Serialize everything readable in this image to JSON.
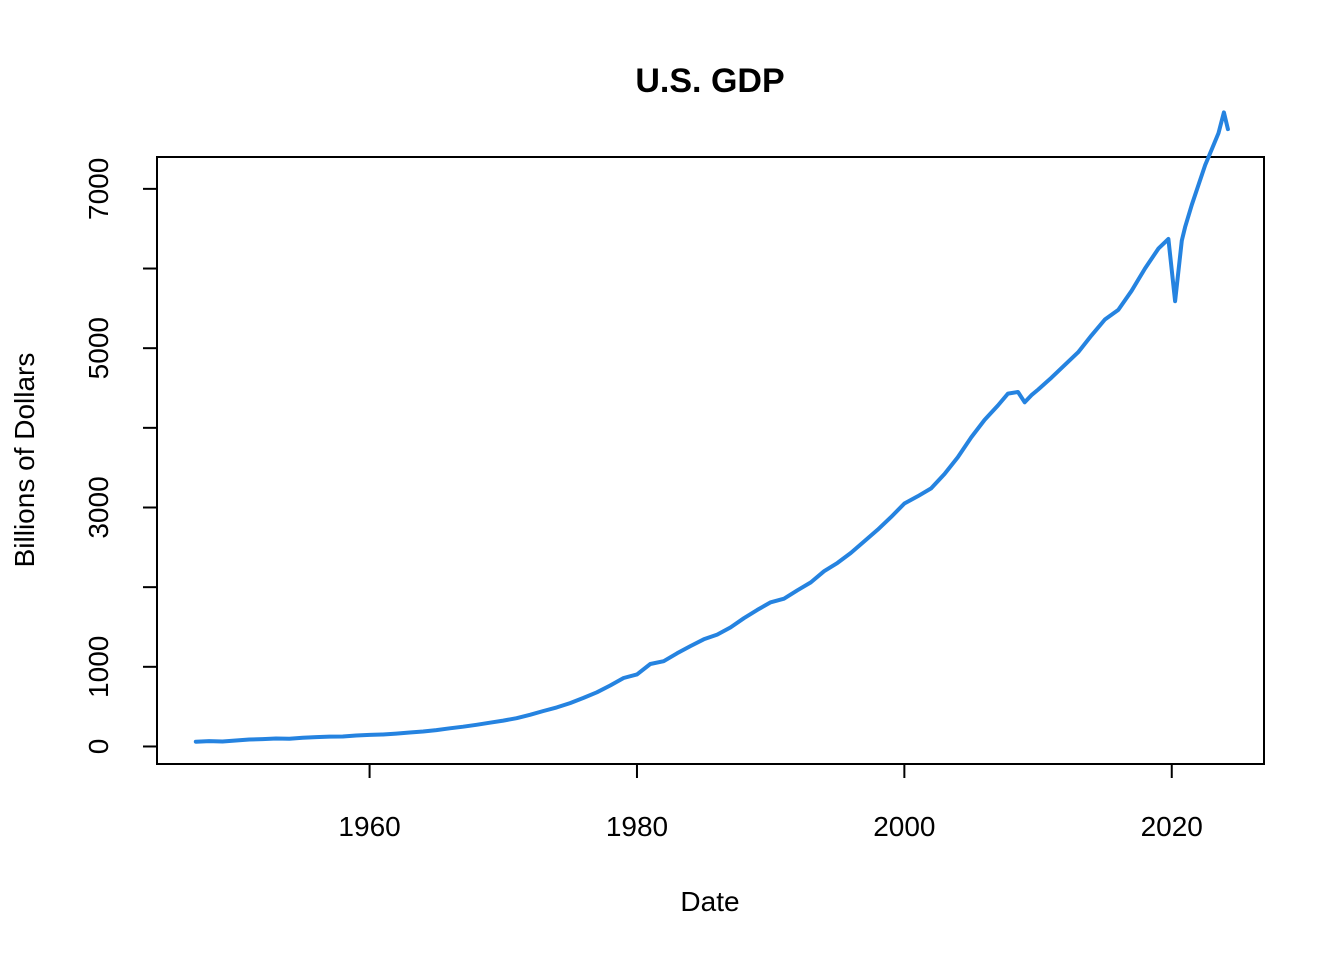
{
  "chart_data": {
    "type": "line",
    "title": "U.S. GDP",
    "xlabel": "Date",
    "ylabel": "Billions of Dollars",
    "xlim": [
      1944.1,
      2026.9
    ],
    "ylim": [
      -220,
      7400
    ],
    "x_ticks": [
      1960,
      1980,
      2000,
      2020
    ],
    "y_ticks": [
      0,
      1000,
      2000,
      3000,
      4000,
      5000,
      6000,
      7000
    ],
    "y_tick_labels": [
      "0",
      "1000",
      "",
      "3000",
      "",
      "5000",
      "",
      "7000"
    ],
    "grid": false,
    "legend": "none",
    "line_color": "#2583E0",
    "series": [
      {
        "x": [
          1947.0,
          1948.0,
          1949.0,
          1950.0,
          1951.0,
          1952.0,
          1953.0,
          1954.0,
          1955.0,
          1956.0,
          1957.0,
          1958.0,
          1959.0,
          1960.0,
          1961.0,
          1962.0,
          1963.0,
          1964.0,
          1965.0,
          1966.0,
          1967.0,
          1968.0,
          1969.0,
          1970.0,
          1971.0,
          1972.0,
          1973.0,
          1974.0,
          1975.0,
          1976.0,
          1977.0,
          1978.0,
          1979.0,
          1980.0,
          1981.0,
          1982.0,
          1983.0,
          1984.0,
          1985.0,
          1986.0,
          1987.0,
          1988.0,
          1989.0,
          1990.0,
          1991.0,
          1992.0,
          1993.0,
          1994.0,
          1995.0,
          1996.0,
          1997.0,
          1998.0,
          1999.0,
          2000.0,
          2001.0,
          2002.0,
          2003.0,
          2004.0,
          2005.0,
          2006.0,
          2007.0,
          2007.75,
          2008.5,
          2009.0,
          2009.5,
          2010.0,
          2011.0,
          2012.0,
          2013.0,
          2014.0,
          2015.0,
          2016.0,
          2017.0,
          2018.0,
          2019.0,
          2019.75,
          2020.25,
          2020.75,
          2021.0,
          2021.5,
          2022.0,
          2022.5,
          2023.0,
          2023.5,
          2023.9,
          2024.2
        ],
        "y": [
          60,
          68,
          63,
          75,
          88,
          92,
          100,
          98,
          110,
          118,
          124,
          125,
          138,
          145,
          150,
          162,
          175,
          188,
          205,
          228,
          248,
          272,
          298,
          325,
          355,
          398,
          445,
          490,
          545,
          610,
          680,
          765,
          860,
          905,
          1035,
          1070,
          1170,
          1260,
          1345,
          1405,
          1495,
          1610,
          1715,
          1810,
          1855,
          1960,
          2060,
          2200,
          2305,
          2430,
          2575,
          2720,
          2880,
          3050,
          3140,
          3240,
          3420,
          3630,
          3880,
          4100,
          4280,
          4430,
          4450,
          4320,
          4410,
          4480,
          4630,
          4790,
          4950,
          5160,
          5360,
          5480,
          5720,
          6000,
          6250,
          6370,
          5590,
          6350,
          6520,
          6800,
          7050,
          7300,
          7500,
          7700,
          7960,
          7750
        ]
      }
    ]
  }
}
